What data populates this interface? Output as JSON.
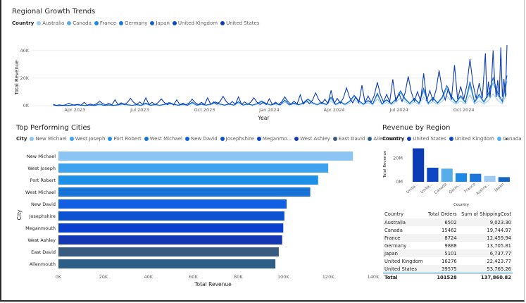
{
  "colors": {
    "cities": [
      "#8cc4f3",
      "#3fa2ef",
      "#1c8fe6",
      "#1873d7",
      "#1060e1",
      "#0d52d0",
      "#0a3fcf",
      "#1537b1",
      "#3a5b80",
      "#2d5f86"
    ],
    "countries": [
      "#9fcbf2",
      "#55aeea",
      "#1e88e5",
      "#1c75da",
      "#1565c0",
      "#0d47c4",
      "#0b3cb4"
    ]
  },
  "growth": {
    "title": "Regional Growth Trends",
    "legend_title": "Country",
    "legend": [
      "Australia",
      "Canada",
      "France",
      "Germany",
      "Japan",
      "United Kingdom",
      "United States"
    ],
    "y_ticks": [
      "40K",
      "20K",
      "0K"
    ],
    "x_ticks": [
      "Apr 2023",
      "Jul 2023",
      "Oct 2023",
      "Jan 2024",
      "Apr 2024",
      "Jul 2024",
      "Oct 2024"
    ],
    "xlabel": "Year",
    "ylabel": "Total Revenue"
  },
  "cities": {
    "title": "Top Performing Cities",
    "legend_title": "City",
    "legend": [
      "New Michael",
      "West Joseph",
      "Port Robert",
      "West Michael",
      "New David",
      "Josephshire",
      "Meganmo...",
      "West Ashley",
      "East David",
      "Allenmouth"
    ],
    "xlabel": "Total Revenue",
    "ylabel": "City",
    "x_ticks": [
      "0K",
      "20K",
      "40K",
      "60K",
      "80K",
      "100K",
      "120K",
      "140K"
    ]
  },
  "region": {
    "title": "Revenue by Region",
    "legend_title": "Country",
    "legend": [
      "United States",
      "United Kingdom",
      "Canada"
    ],
    "y_ticks": [
      "20M",
      "0M"
    ],
    "ylabel": "Total Revenue",
    "xlabel": "Country",
    "x_labels": [
      "Unite...",
      "Unite...",
      "Canada",
      "Germ...",
      "France",
      "Austra...",
      "Japan"
    ],
    "table": {
      "headers": [
        "Country",
        "Total Orders",
        "Sum of ShippingCost"
      ],
      "rows": [
        [
          "Australia",
          "6502",
          "9,023.30"
        ],
        [
          "Canada",
          "15462",
          "19,744.97"
        ],
        [
          "France",
          "8724",
          "12,459.94"
        ],
        [
          "Germany",
          "9888",
          "13,705.81"
        ],
        [
          "Japan",
          "5101",
          "6,737.77"
        ],
        [
          "United Kingdom",
          "16276",
          "22,423.77"
        ],
        [
          "United States",
          "39575",
          "53,765.26"
        ]
      ],
      "total": [
        "Total",
        "101528",
        "137,860.82"
      ]
    }
  },
  "chart_data": [
    {
      "type": "line",
      "title": "Regional Growth Trends",
      "xlabel": "Year",
      "ylabel": "Total Revenue",
      "ylim": [
        0,
        45000
      ],
      "xlim": [
        "2023-02",
        "2024-12"
      ],
      "series": [
        {
          "name": "United States",
          "x": [
            "2023-03",
            "2023-05",
            "2023-07",
            "2023-09",
            "2023-11",
            "2024-01",
            "2024-03",
            "2024-05",
            "2024-07",
            "2024-09",
            "2024-11",
            "2024-12"
          ],
          "values": [
            1000,
            3000,
            6000,
            4000,
            7000,
            5000,
            9000,
            14000,
            20000,
            26000,
            38000,
            44000
          ]
        },
        {
          "name": "United Kingdom",
          "x": [
            "2023-03",
            "2023-06",
            "2023-09",
            "2023-12",
            "2024-03",
            "2024-06",
            "2024-09",
            "2024-12"
          ],
          "values": [
            500,
            1500,
            2500,
            3000,
            5000,
            9000,
            14000,
            22000
          ]
        },
        {
          "name": "Canada",
          "x": [
            "2023-03",
            "2023-06",
            "2023-09",
            "2023-12",
            "2024-03",
            "2024-06",
            "2024-09",
            "2024-12"
          ],
          "values": [
            400,
            1200,
            2000,
            2500,
            4500,
            8000,
            12000,
            18000
          ]
        },
        {
          "name": "Australia",
          "x": [
            "2023-03",
            "2023-06",
            "2023-09",
            "2023-12",
            "2024-03",
            "2024-06",
            "2024-09",
            "2024-12"
          ],
          "values": [
            200,
            800,
            1500,
            2000,
            3000,
            5000,
            7000,
            9000
          ]
        }
      ]
    },
    {
      "type": "bar",
      "title": "Top Performing Cities",
      "xlabel": "Total Revenue",
      "ylabel": "City",
      "xlim": [
        0,
        140000
      ],
      "categories": [
        "New Michael",
        "West Joseph",
        "Port Robert",
        "West Michael",
        "New David",
        "Josephshire",
        "Meganmouth",
        "West Ashley",
        "East David",
        "Allenmouth"
      ],
      "values": [
        131000,
        120000,
        115500,
        112000,
        101500,
        100500,
        100000,
        99500,
        98000,
        96500
      ]
    },
    {
      "type": "bar",
      "title": "Revenue by Region",
      "xlabel": "Country",
      "ylabel": "Total Revenue",
      "ylim": [
        0,
        30000000
      ],
      "categories": [
        "United States",
        "United Kingdom",
        "Canada",
        "Germany",
        "France",
        "Australia",
        "Japan"
      ],
      "values": [
        28500000,
        12000000,
        11200000,
        7300000,
        6800000,
        5000000,
        4000000
      ]
    }
  ]
}
